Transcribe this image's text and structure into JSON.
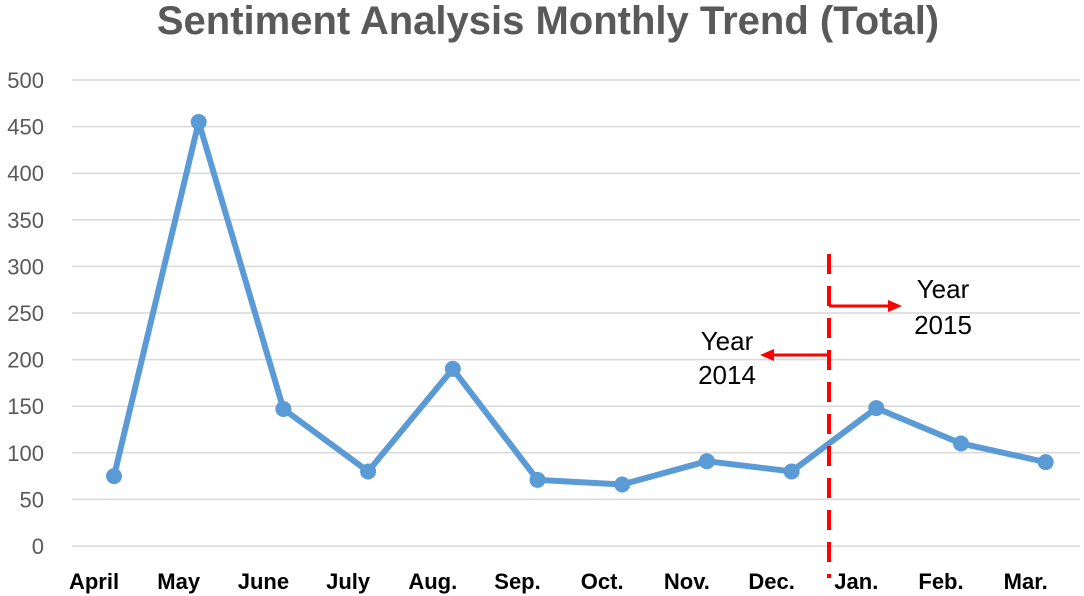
{
  "chart_data": {
    "type": "line",
    "title": "Sentiment Analysis Monthly Trend (Total)",
    "xlabel": "",
    "ylabel": "",
    "categories": [
      "April",
      "May",
      "June",
      "July",
      "Aug.",
      "Sep.",
      "Oct.",
      "Nov.",
      "Dec.",
      "Jan.",
      "Feb.",
      "Mar."
    ],
    "series": [
      {
        "values": [
          75,
          455,
          147,
          80,
          190,
          71,
          66,
          91,
          80,
          148,
          110,
          90
        ]
      }
    ],
    "ylim": [
      0,
      500
    ],
    "yticks": [
      0,
      50,
      100,
      150,
      200,
      250,
      300,
      350,
      400,
      450,
      500
    ],
    "grid": true,
    "legend": "none",
    "colors": {
      "line": "#5b9bd5",
      "grid": "#d9d9d9",
      "annotation": "#ff0000"
    },
    "annotations": [
      {
        "text_lines": [
          "Year",
          "2014"
        ],
        "direction": "left"
      },
      {
        "text_lines": [
          "Year",
          "2015"
        ],
        "direction": "right"
      }
    ],
    "divider_between": [
      "Dec.",
      "Jan."
    ]
  }
}
